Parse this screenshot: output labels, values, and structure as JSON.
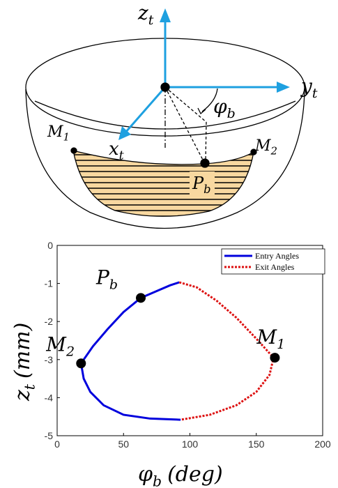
{
  "diagram": {
    "labels": {
      "z_axis": {
        "main": "z",
        "sub": "t"
      },
      "y_axis": {
        "main": "y",
        "sub": "t"
      },
      "x_axis": {
        "main": "x",
        "sub": "t"
      },
      "angle": {
        "main": "φ",
        "sub": "b"
      },
      "m1": {
        "main": "M",
        "sub": "1"
      },
      "m2": {
        "main": "M",
        "sub": "2"
      },
      "pb": {
        "main": "P",
        "sub": "b"
      }
    }
  },
  "chart_data": {
    "type": "line",
    "xlabel": {
      "main": "φ",
      "sub": "b",
      "unit": "(deg)"
    },
    "ylabel": {
      "main": "z",
      "sub": "t",
      "unit": "(mm)"
    },
    "xlim": [
      0,
      200
    ],
    "xticks": [
      0,
      50,
      100,
      150,
      200
    ],
    "ylim": [
      -5,
      0
    ],
    "yticks": [
      0,
      -1,
      -2,
      -3,
      -4,
      -5
    ],
    "legend": "upper right",
    "series": [
      {
        "name": "Entry Angles",
        "color": "#0000dd",
        "style": "solid",
        "x": [
          92,
          85,
          75,
          63,
          50,
          38,
          27,
          18,
          20,
          25,
          35,
          50,
          70,
          93
        ],
        "values": [
          -0.97,
          -1.05,
          -1.2,
          -1.38,
          -1.75,
          -2.2,
          -2.65,
          -3.1,
          -3.5,
          -3.85,
          -4.2,
          -4.45,
          -4.55,
          -4.58
        ]
      },
      {
        "name": "Exit Angles",
        "color": "#dd1111",
        "style": "dotted",
        "x": [
          92,
          105,
          120,
          135,
          150,
          163,
          160,
          150,
          135,
          115,
          93
        ],
        "values": [
          -0.97,
          -1.1,
          -1.45,
          -1.9,
          -2.45,
          -2.95,
          -3.4,
          -3.85,
          -4.2,
          -4.45,
          -4.58
        ]
      }
    ],
    "points": [
      {
        "label": {
          "main": "P",
          "sub": "b"
        },
        "x": 63,
        "y": -1.38
      },
      {
        "label": {
          "main": "M",
          "sub": "2"
        },
        "x": 18,
        "y": -3.1
      },
      {
        "label": {
          "main": "M",
          "sub": "1"
        },
        "x": 164,
        "y": -2.95
      }
    ]
  }
}
